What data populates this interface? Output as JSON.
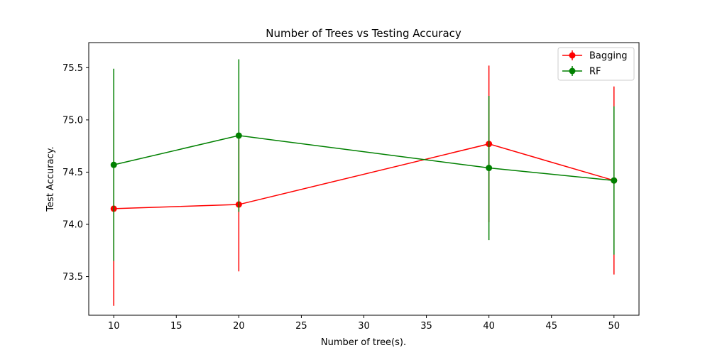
{
  "chart_data": {
    "type": "line",
    "title": "Number of Trees vs Testing Accuracy",
    "xlabel": "Number of tree(s).",
    "ylabel": "Test Accuracy.",
    "xlim": [
      8,
      52
    ],
    "ylim": [
      73.13,
      75.74
    ],
    "x_ticks": [
      10,
      15,
      20,
      25,
      30,
      35,
      40,
      45,
      50
    ],
    "y_ticks": [
      73.5,
      74.0,
      74.5,
      75.0,
      75.5
    ],
    "y_tick_labels": [
      "73.5",
      "74.0",
      "74.5",
      "75.0",
      "75.5"
    ],
    "grid": false,
    "legend_position": "top-right",
    "series": [
      {
        "name": "Bagging",
        "color": "#ff0000",
        "x": [
          10,
          20,
          40,
          50
        ],
        "y": [
          74.15,
          74.19,
          74.77,
          74.42
        ],
        "yerr": [
          0.93,
          0.64,
          0.75,
          0.9
        ]
      },
      {
        "name": "RF",
        "color": "#008000",
        "x": [
          10,
          20,
          40,
          50
        ],
        "y": [
          74.57,
          74.85,
          74.54,
          74.42
        ],
        "yerr": [
          0.92,
          0.73,
          0.69,
          0.71
        ]
      }
    ]
  }
}
